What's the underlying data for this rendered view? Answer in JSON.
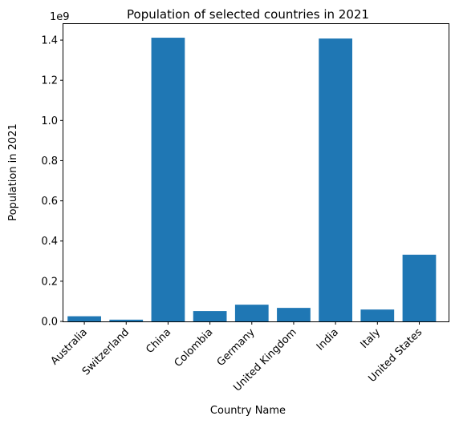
{
  "chart_data": {
    "type": "bar",
    "title": "Population of selected countries in 2021",
    "xlabel": "Country Name",
    "ylabel": "Population in 2021",
    "y_offset_label": "1e9",
    "categories": [
      "Australia",
      "Switzerland",
      "China",
      "Colombia",
      "Germany",
      "United Kingdom",
      "India",
      "Italy",
      "United States"
    ],
    "values": [
      25700000,
      8700000,
      1412000000,
      51500000,
      83200000,
      67300000,
      1408000000,
      59100000,
      332000000
    ],
    "ylim": [
      0,
      1480000000.0
    ],
    "yticks": [
      0,
      200000000,
      400000000,
      600000000,
      800000000,
      1000000000,
      1200000000,
      1400000000
    ],
    "ytick_labels": [
      "0.0",
      "0.2",
      "0.4",
      "0.6",
      "0.8",
      "1.0",
      "1.2",
      "1.4"
    ],
    "bar_color": "#1f77b4",
    "grid": false,
    "legend": "none"
  }
}
